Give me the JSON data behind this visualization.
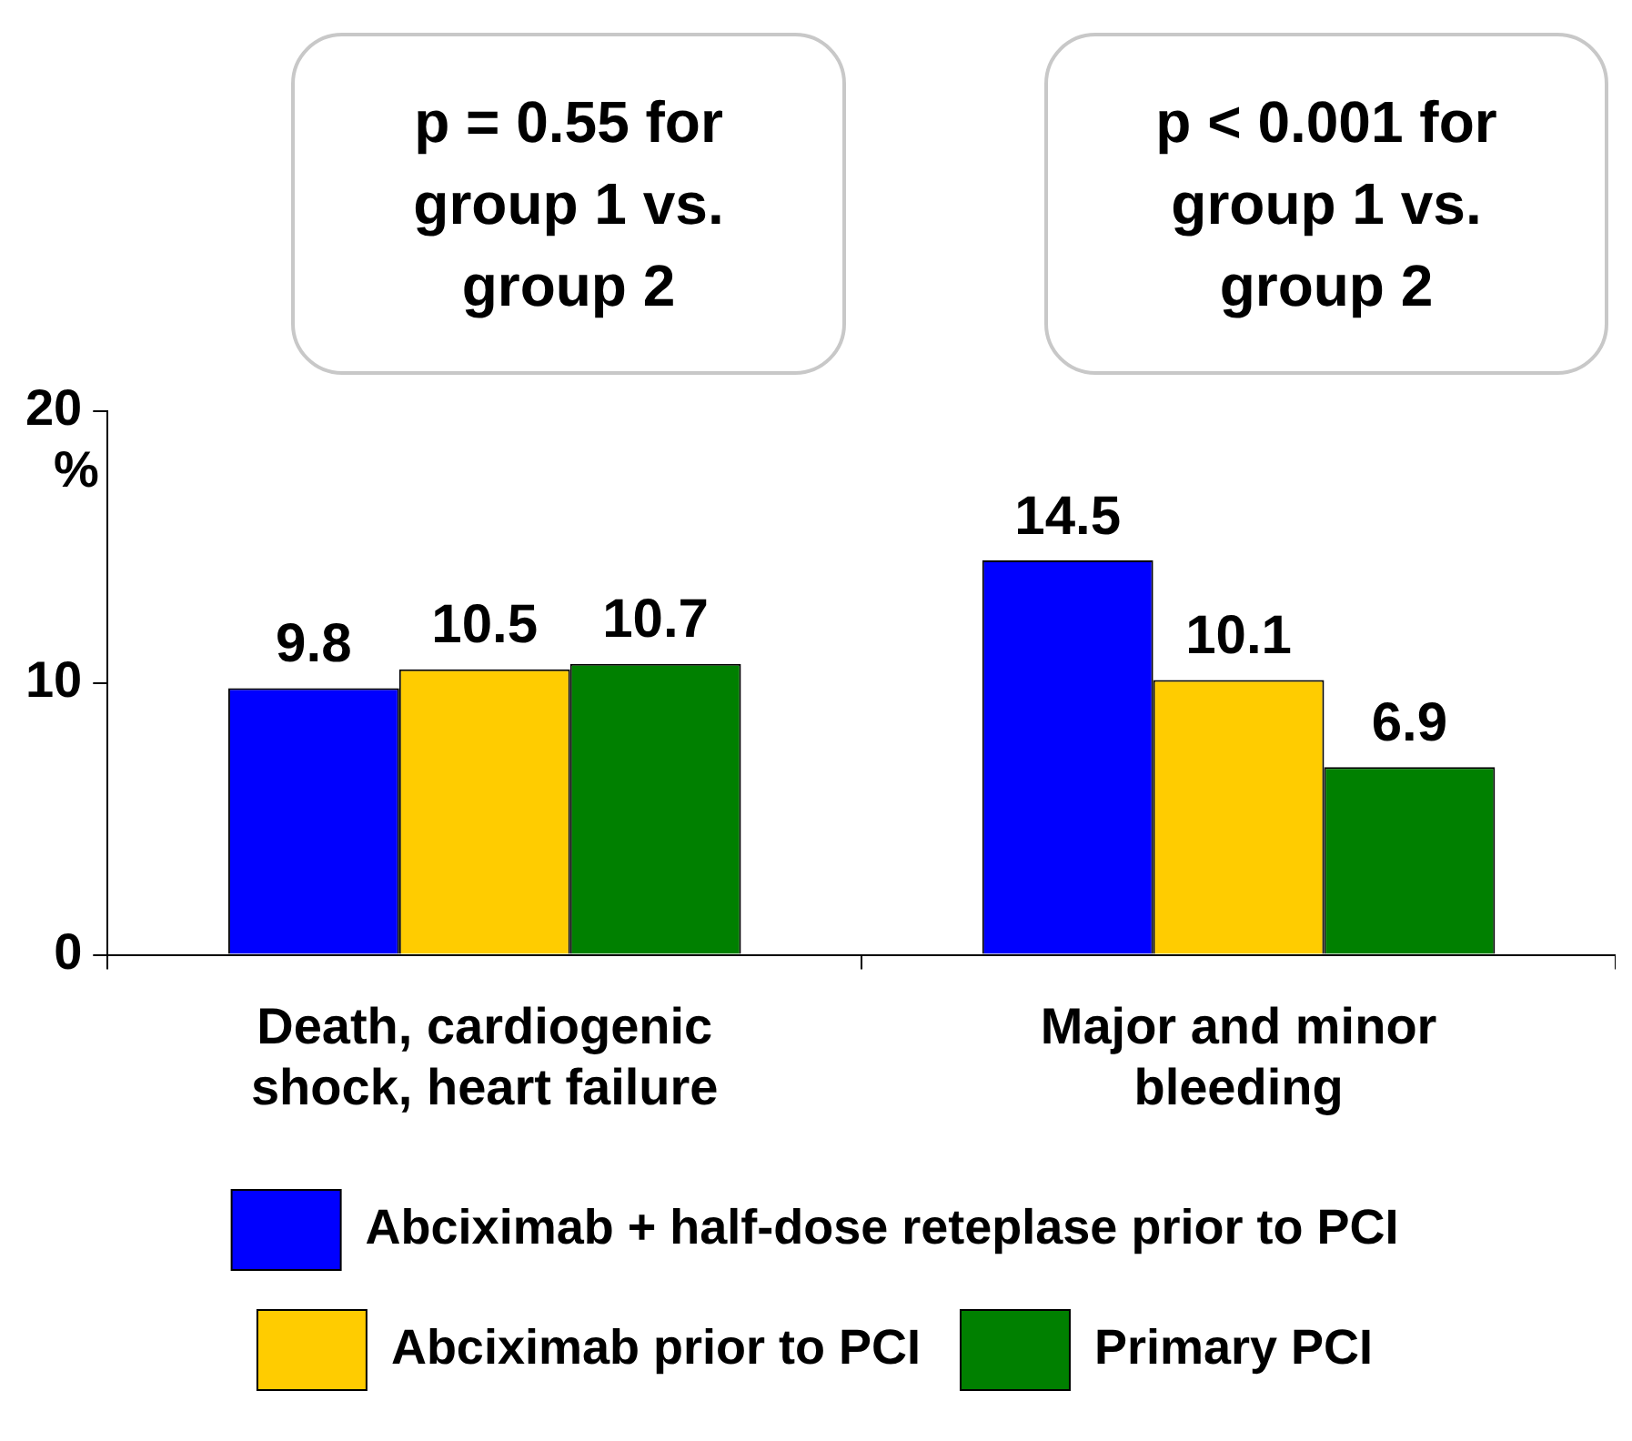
{
  "chart_data": {
    "type": "bar",
    "ylabel": "%",
    "categories": [
      "Death, cardiogenic shock, heart failure",
      "Major and minor bleeding"
    ],
    "series": [
      {
        "name": "Abciximab + half-dose reteplase prior to PCI",
        "color": "#0000ff",
        "values": [
          9.8,
          14.5
        ]
      },
      {
        "name": "Abciximab prior to PCI",
        "color": "#ffcc00",
        "values": [
          10.5,
          10.1
        ]
      },
      {
        "name": "Primary PCI",
        "color": "#008000",
        "values": [
          10.7,
          6.9
        ]
      }
    ],
    "ylim": [
      0,
      20
    ],
    "yticks": [
      0,
      10,
      20
    ],
    "grid": false,
    "legend": "bottom",
    "data_labels": true,
    "annotations": [
      "p = 0.55 for group 1 vs. group 2",
      "p < 0.001 for group 1 vs. group 2"
    ]
  }
}
